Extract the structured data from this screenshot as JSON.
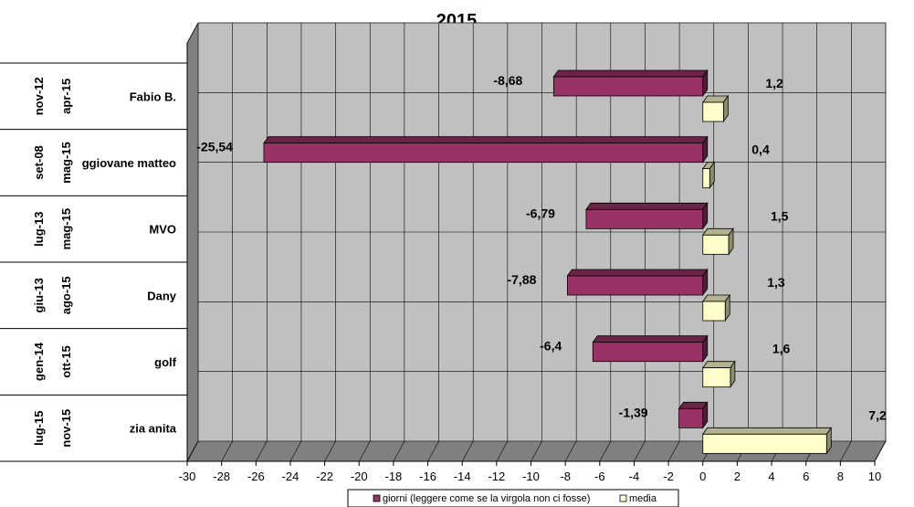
{
  "chart_data": {
    "type": "bar",
    "orientation": "horizontal",
    "title": "2015",
    "xlim": [
      -30,
      10
    ],
    "x_ticks": [
      -30,
      -28,
      -26,
      -24,
      -22,
      -20,
      -18,
      -16,
      -14,
      -12,
      -10,
      -8,
      -6,
      -4,
      -2,
      0,
      2,
      4,
      6,
      8,
      10
    ],
    "x_tick_labels": [
      "-30",
      "-28",
      "-26",
      "-24",
      "-22",
      "-20",
      "-18",
      "-16",
      "-14",
      "-12",
      "-10",
      "-8",
      "-6",
      "-4",
      "-2",
      "0",
      "2",
      "4",
      "6",
      "8",
      "10"
    ],
    "grid": true,
    "legend_position": "bottom",
    "categories": [
      {
        "name": "Fabio B.",
        "start": "nov-12",
        "end": "apr-15"
      },
      {
        "name": "ggiovane matteo",
        "start": "set-08",
        "end": "mag-15"
      },
      {
        "name": "MVO",
        "start": "lug-13",
        "end": "mag-15"
      },
      {
        "name": "Dany",
        "start": "giu-13",
        "end": "ago-15"
      },
      {
        "name": "golf",
        "start": "gen-14",
        "end": "ott-15"
      },
      {
        "name": "zia anita",
        "start": "lug-15",
        "end": "nov-15"
      }
    ],
    "series": [
      {
        "name": "giorni (leggere come se la virgola non ci fosse)",
        "color": "#993366",
        "values": [
          -8.68,
          -25.54,
          -6.79,
          -7.88,
          -6.4,
          -1.39
        ],
        "labels": [
          "-8,68",
          "-25,54",
          "-6,79",
          "-7,88",
          "-6,4",
          "-1,39"
        ]
      },
      {
        "name": "media",
        "color": "#ffffcc",
        "values": [
          1.2,
          0.4,
          1.5,
          1.3,
          1.6,
          7.2
        ],
        "labels": [
          "1,2",
          "0,4",
          "1,5",
          "1,3",
          "1,6",
          "7,2"
        ]
      }
    ]
  }
}
